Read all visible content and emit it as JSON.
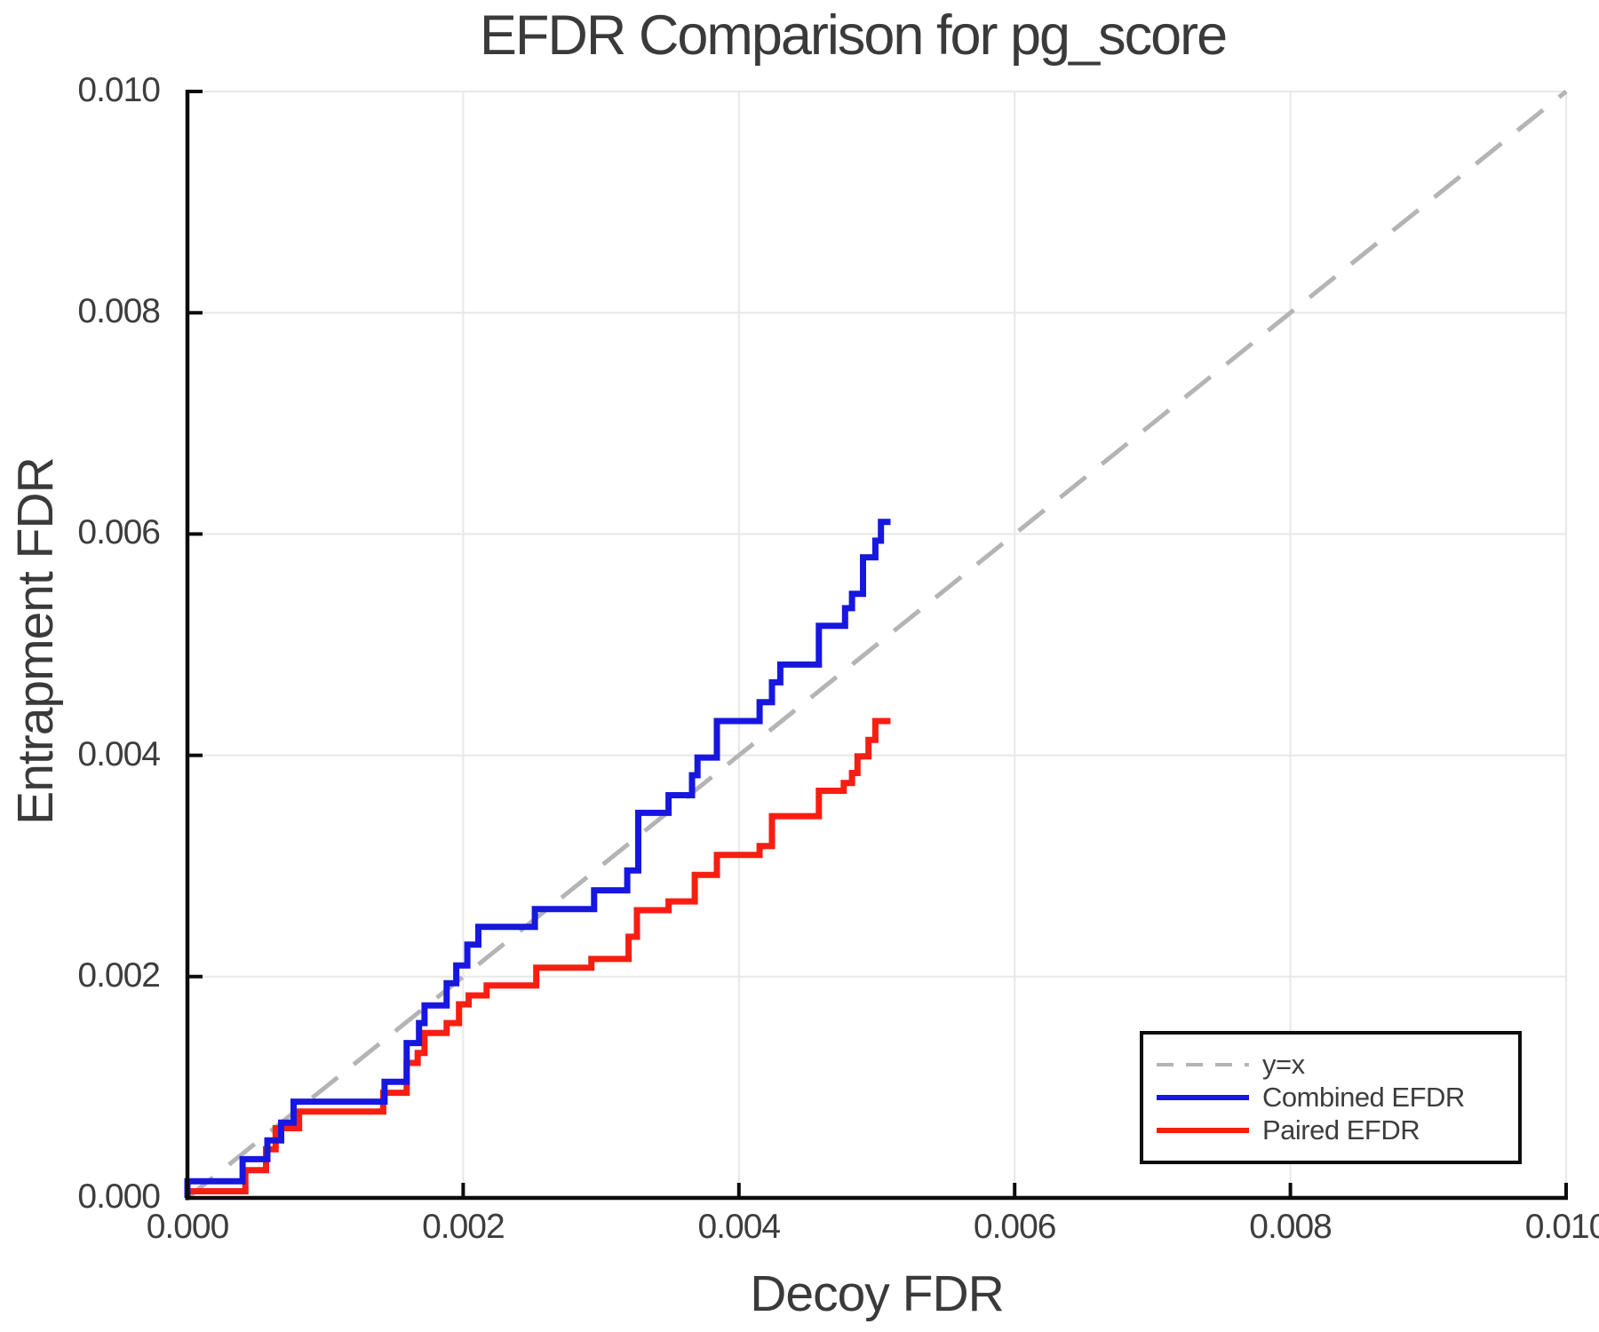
{
  "chart_data": {
    "type": "line",
    "title": "EFDR Comparison for pg_score",
    "xlabel": "Decoy FDR",
    "ylabel": "Entrapment FDR",
    "xlim": [
      0.0,
      0.01
    ],
    "ylim": [
      0.0,
      0.01
    ],
    "x_ticks": [
      0.0,
      0.002,
      0.004,
      0.006,
      0.008,
      0.01
    ],
    "x_tick_labels": [
      "0.000",
      "0.002",
      "0.004",
      "0.006",
      "0.008",
      "0.010"
    ],
    "y_ticks": [
      0.0,
      0.002,
      0.004,
      0.006,
      0.008,
      0.01
    ],
    "y_tick_labels": [
      "0.000",
      "0.002",
      "0.004",
      "0.006",
      "0.008",
      "0.010"
    ],
    "grid": true,
    "grid_color": "#e8e8e8",
    "axis_color": "#0c0c0c",
    "text_color": "#3d3d3d",
    "legend_position": "bottom-right",
    "reference_line": {
      "label": "y=x",
      "style": "dashed",
      "color": "#b4b4b4",
      "from": [
        0.0,
        0.0
      ],
      "to": [
        0.01,
        0.01
      ]
    },
    "series": [
      {
        "name": "Combined EFDR",
        "color": "#1717e0",
        "style": "step-post",
        "start": [
          0.0,
          0.0
        ],
        "steps": [
          [
            0.0,
            0.00015
          ],
          [
            0.0004,
            0.00035
          ],
          [
            0.00058,
            0.00052
          ],
          [
            0.00068,
            0.00068
          ],
          [
            0.00077,
            0.00087
          ],
          [
            0.00143,
            0.00105
          ],
          [
            0.00159,
            0.0014
          ],
          [
            0.00168,
            0.00158
          ],
          [
            0.00172,
            0.00174
          ],
          [
            0.00188,
            0.00194
          ],
          [
            0.00195,
            0.0021
          ],
          [
            0.00203,
            0.00229
          ],
          [
            0.00211,
            0.00245
          ],
          [
            0.00252,
            0.00261
          ],
          [
            0.00295,
            0.00278
          ],
          [
            0.00319,
            0.00296
          ],
          [
            0.00327,
            0.00348
          ],
          [
            0.00349,
            0.00364
          ],
          [
            0.00366,
            0.00382
          ],
          [
            0.0037,
            0.00398
          ],
          [
            0.00384,
            0.00431
          ],
          [
            0.00415,
            0.00448
          ],
          [
            0.00424,
            0.00466
          ],
          [
            0.0043,
            0.00482
          ],
          [
            0.00458,
            0.00517
          ],
          [
            0.00477,
            0.00533
          ],
          [
            0.00482,
            0.00546
          ],
          [
            0.0049,
            0.00579
          ],
          [
            0.00499,
            0.00594
          ],
          [
            0.00503,
            0.00611
          ]
        ],
        "end_x": 0.0051
      },
      {
        "name": "Paired EFDR",
        "color": "#f81e12",
        "style": "step-post",
        "start": [
          0.0,
          6e-05
        ],
        "steps": [
          [
            0.00042,
            0.00025
          ],
          [
            0.00057,
            0.00044
          ],
          [
            0.00064,
            0.00063
          ],
          [
            0.00081,
            0.00078
          ],
          [
            0.00142,
            0.00095
          ],
          [
            0.00159,
            0.00122
          ],
          [
            0.00167,
            0.00131
          ],
          [
            0.00172,
            0.00149
          ],
          [
            0.00188,
            0.00158
          ],
          [
            0.00197,
            0.00175
          ],
          [
            0.00204,
            0.00183
          ],
          [
            0.00217,
            0.00192
          ],
          [
            0.00253,
            0.00208
          ],
          [
            0.00293,
            0.00216
          ],
          [
            0.0032,
            0.00236
          ],
          [
            0.00326,
            0.0026
          ],
          [
            0.00349,
            0.00268
          ],
          [
            0.00368,
            0.00292
          ],
          [
            0.00384,
            0.0031
          ],
          [
            0.00415,
            0.00318
          ],
          [
            0.00424,
            0.00345
          ],
          [
            0.00458,
            0.00368
          ],
          [
            0.00476,
            0.00375
          ],
          [
            0.00482,
            0.00384
          ],
          [
            0.00486,
            0.00399
          ],
          [
            0.00494,
            0.00414
          ],
          [
            0.00499,
            0.00431
          ]
        ],
        "end_x": 0.0051
      }
    ]
  },
  "legend": {
    "items": [
      {
        "label": "y=x"
      },
      {
        "label": "Combined EFDR"
      },
      {
        "label": "Paired EFDR"
      }
    ]
  }
}
